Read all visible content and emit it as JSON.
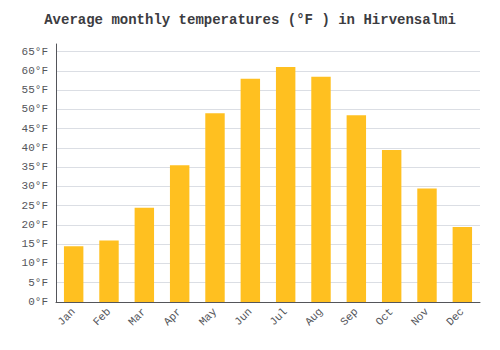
{
  "chart_data": {
    "type": "bar",
    "title": "Average monthly temperatures (°F ) in Hirvensalmi",
    "categories": [
      "Jan",
      "Feb",
      "Mar",
      "Apr",
      "May",
      "Jun",
      "Jul",
      "Aug",
      "Sep",
      "Oct",
      "Nov",
      "Dec"
    ],
    "values": [
      14.5,
      16.0,
      24.5,
      35.5,
      49.0,
      58.0,
      61.0,
      58.5,
      48.5,
      39.5,
      29.5,
      19.5
    ],
    "color": "#FFC020",
    "ylim": [
      0,
      67
    ],
    "yticks": [
      {
        "value": 0,
        "label": "0°F"
      },
      {
        "value": 5,
        "label": "5°F"
      },
      {
        "value": 10,
        "label": "10°F"
      },
      {
        "value": 15,
        "label": "15°F"
      },
      {
        "value": 20,
        "label": "20°F"
      },
      {
        "value": 25,
        "label": "25°F"
      },
      {
        "value": 30,
        "label": "30°F"
      },
      {
        "value": 35,
        "label": "35°F"
      },
      {
        "value": 40,
        "label": "40°F"
      },
      {
        "value": 45,
        "label": "45°F"
      },
      {
        "value": 50,
        "label": "50°F"
      },
      {
        "value": 55,
        "label": "55°F"
      },
      {
        "value": 60,
        "label": "60°F"
      },
      {
        "value": 65,
        "label": "65°F"
      }
    ],
    "grid": true
  }
}
